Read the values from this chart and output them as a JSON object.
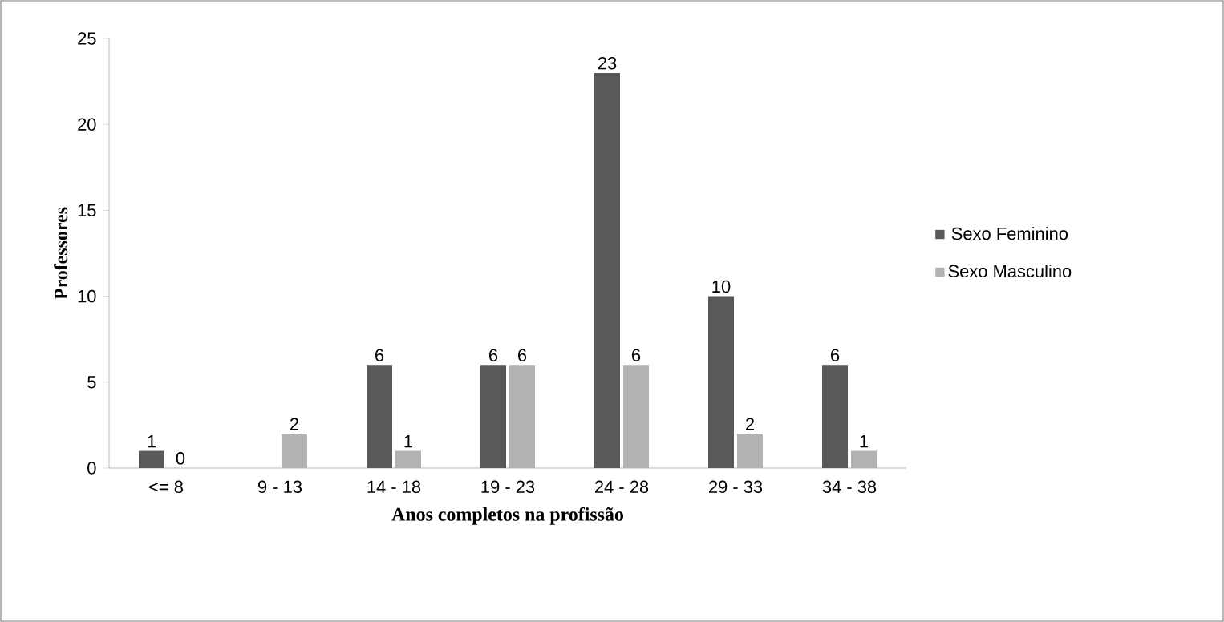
{
  "chart_data": {
    "type": "bar",
    "xlabel": "Anos completos na profissão",
    "ylabel": "Professores",
    "categories": [
      "<= 8",
      "9 - 13",
      "14 - 18",
      "19 - 23",
      "24 - 28",
      "29 - 33",
      "34 - 38"
    ],
    "series": [
      {
        "name": "Sexo Feminino",
        "color": "#595959",
        "values": [
          1,
          null,
          6,
          6,
          23,
          10,
          6
        ]
      },
      {
        "name": "Sexo Masculino",
        "color": "#b2b2b2",
        "values": [
          0,
          2,
          1,
          6,
          6,
          2,
          1
        ]
      }
    ],
    "ylim": [
      0,
      25
    ],
    "yticks": [
      0,
      5,
      10,
      15,
      20,
      25
    ],
    "data_labels": true,
    "legend": "right",
    "grid": false
  }
}
